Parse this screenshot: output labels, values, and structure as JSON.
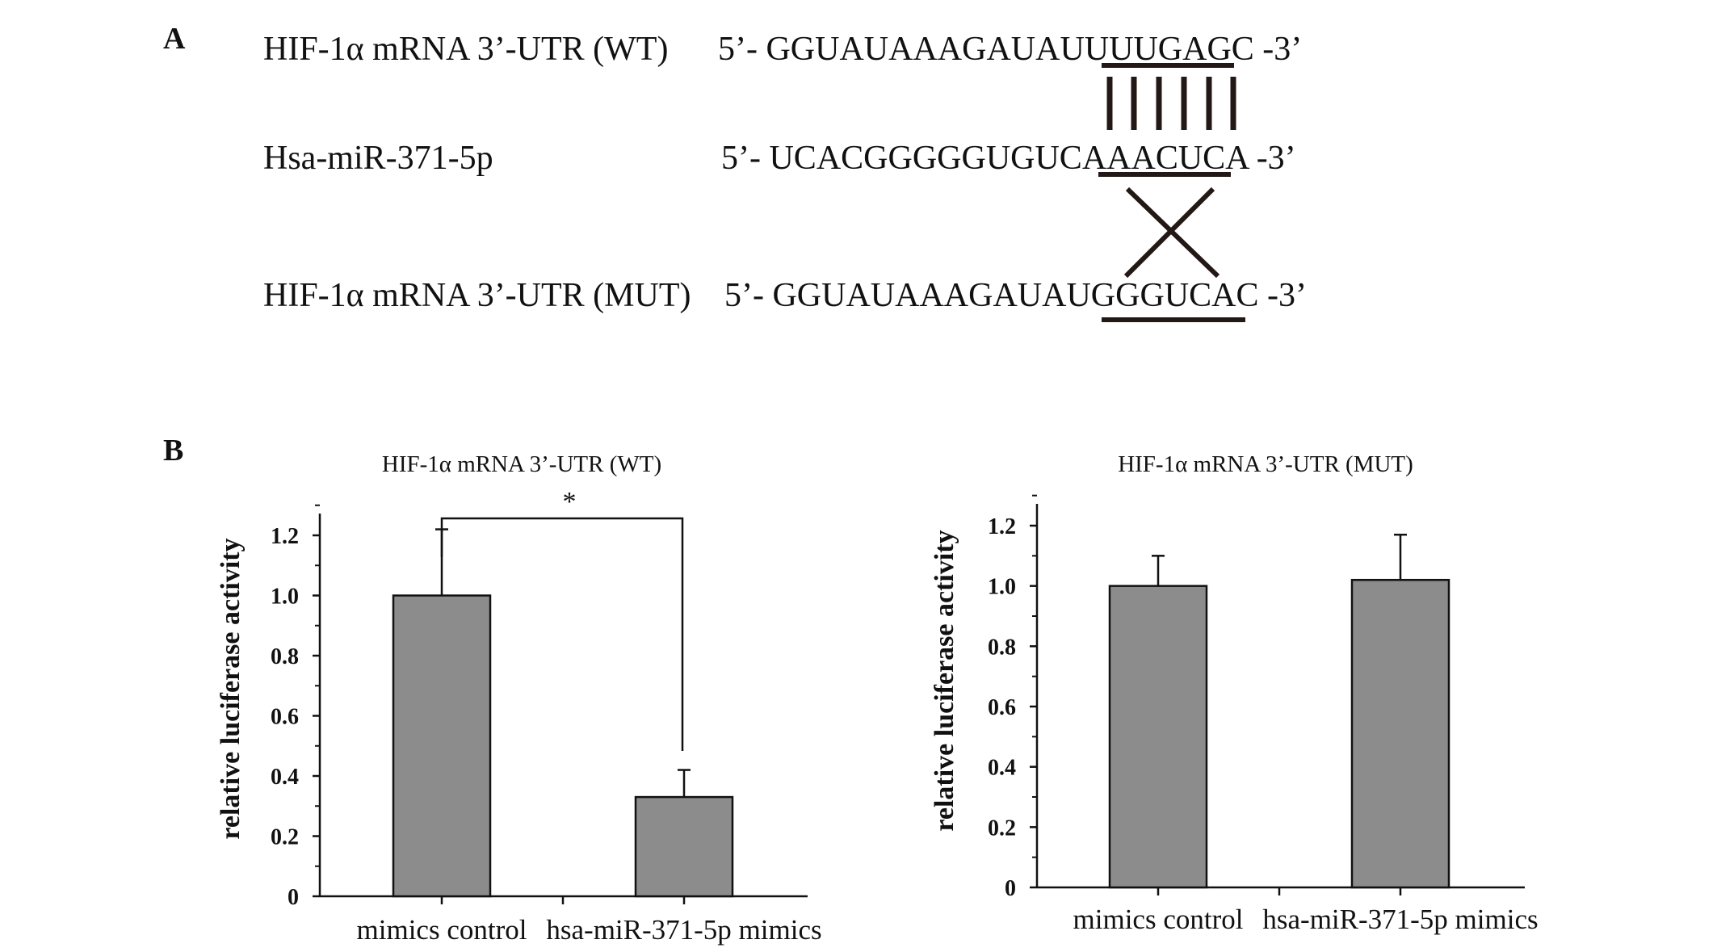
{
  "panel_a": {
    "letter": "A",
    "rows": [
      {
        "label": "HIF-1α mRNA 3’-UTR (WT)",
        "prefix": "5’- GGUAUAAAGAUAU",
        "site": "UUUGA",
        "suffix": "GC -3’"
      },
      {
        "label": "Hsa-miR-371-5p",
        "prefix": "5’- UCACGGGGGUGUC",
        "site": "AAACU",
        "suffix": "CA -3’"
      },
      {
        "label": "HIF-1α mRNA 3’-UTR (MUT)",
        "prefix": "5’- GGUAUAAAGAUAU",
        "site": "GGGUC",
        "suffix": "AC -3’"
      }
    ]
  },
  "panel_b": {
    "letter": "B",
    "significance": "*"
  },
  "chart_data": [
    {
      "type": "bar",
      "title": "HIF-1α mRNA 3’-UTR (WT)",
      "xlabel": "",
      "ylabel": "relative luciferase activity",
      "categories": [
        "mimics control",
        "hsa-miR-371-5p mimics"
      ],
      "values": [
        1.0,
        0.33
      ],
      "error": [
        0.22,
        0.09
      ],
      "ylim": [
        0,
        1.2
      ],
      "yticks": [
        "0",
        "0.2",
        "0.4",
        "0.6",
        "0.8",
        "1.0",
        "1.2"
      ],
      "bar_color": "#8c8c8c",
      "grid": false,
      "annotations": [
        "*"
      ]
    },
    {
      "type": "bar",
      "title": "HIF-1α mRNA 3’-UTR (MUT)",
      "xlabel": "",
      "ylabel": "relative luciferase activity",
      "categories": [
        "mimics control",
        "hsa-miR-371-5p mimics"
      ],
      "values": [
        1.0,
        1.02
      ],
      "error": [
        0.1,
        0.15
      ],
      "ylim": [
        0,
        1.2
      ],
      "yticks": [
        "0",
        "0.2",
        "0.4",
        "0.6",
        "0.8",
        "1.0",
        "1.2"
      ],
      "bar_color": "#8c8c8c",
      "grid": false
    }
  ]
}
